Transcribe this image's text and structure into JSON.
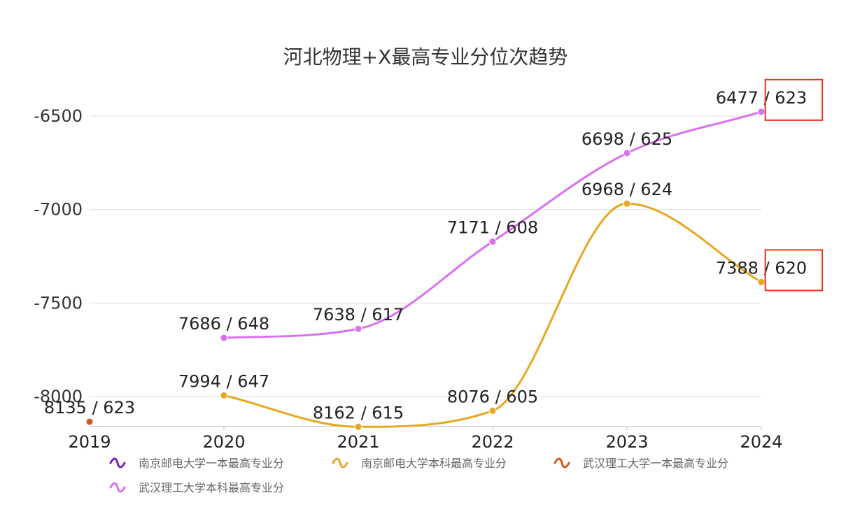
{
  "chart_data": {
    "type": "line",
    "title": "河北物理+X最高专业分位次趋势",
    "categories": [
      "2019",
      "2020",
      "2021",
      "2022",
      "2023",
      "2024"
    ],
    "yticks": [
      "-6500",
      "-7000",
      "-7500",
      "-8000"
    ],
    "ylim": [
      -8160,
      -6340
    ],
    "y_axis_inverted_rank": true,
    "grid": true,
    "legend_position": "bottom",
    "series": [
      {
        "name": "南京邮电大学一本最高专业分",
        "color": "#7B1FBF",
        "points": []
      },
      {
        "name": "南京邮电大学本科最高专业分",
        "color": "#E6A822",
        "points": [
          {
            "x": "2020",
            "rank": 7994,
            "score": 647,
            "label": "7994 / 647"
          },
          {
            "x": "2021",
            "rank": 8162,
            "score": 615,
            "label": "8162 / 615"
          },
          {
            "x": "2022",
            "rank": 8076,
            "score": 605,
            "label": "8076 / 605"
          },
          {
            "x": "2023",
            "rank": 6968,
            "score": 624,
            "label": "6968 / 624"
          },
          {
            "x": "2024",
            "rank": 7388,
            "score": 620,
            "label": "7388 / 620"
          }
        ]
      },
      {
        "name": "武汉理工大学一本最高专业分",
        "color": "#D2571B",
        "points": [
          {
            "x": "2019",
            "rank": 8135,
            "score": 623,
            "label": "8135 / 623"
          }
        ]
      },
      {
        "name": "武汉理工大学本科最高专业分",
        "color": "#D970F0",
        "points": [
          {
            "x": "2020",
            "rank": 7686,
            "score": 648,
            "label": "7686 / 648"
          },
          {
            "x": "2021",
            "rank": 7638,
            "score": 617,
            "label": "7638 / 617"
          },
          {
            "x": "2022",
            "rank": 7171,
            "score": 608,
            "label": "7171 / 608"
          },
          {
            "x": "2023",
            "rank": 6698,
            "score": 625,
            "label": "6698 / 625"
          },
          {
            "x": "2024",
            "rank": 6477,
            "score": 623,
            "label": "6477 / 623"
          }
        ]
      }
    ],
    "annotations": [
      {
        "type": "highlight-box",
        "color": "#E8321E",
        "series": "武汉理工大学本科最高专业分",
        "x": "2024",
        "part": "score"
      },
      {
        "type": "highlight-box",
        "color": "#E8321E",
        "series": "南京邮电大学本科最高专业分",
        "x": "2024",
        "part": "score"
      }
    ]
  }
}
